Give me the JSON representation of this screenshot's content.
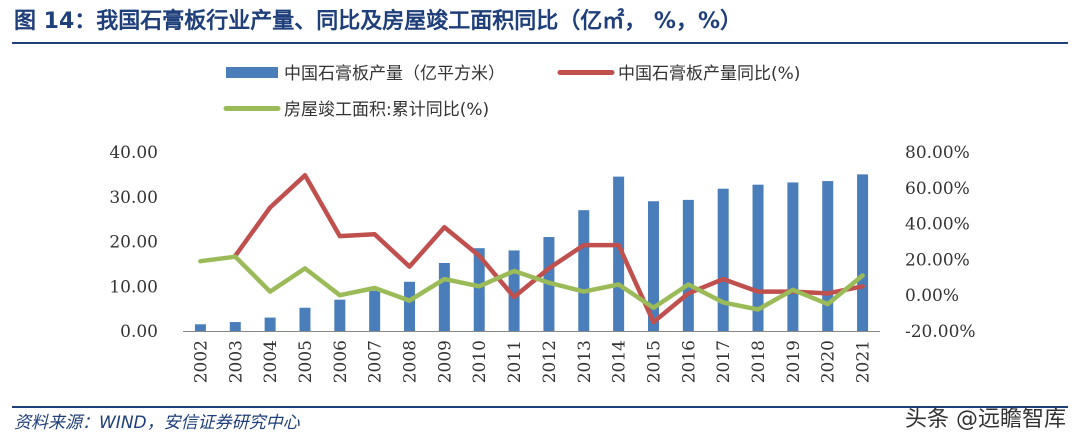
{
  "header": {
    "title": "图 14：我国石膏板行业产量、同比及房屋竣工面积同比（亿㎡， %，%）"
  },
  "footer": {
    "source": "资料来源：WIND，安信证券研究中心",
    "watermark": "头条 @远瞻智库"
  },
  "colors": {
    "bar": "#4a7ebb",
    "line1": "#c0504d",
    "line2": "#9bbb59",
    "accent": "#1f3f7a"
  },
  "chart_data": {
    "type": "bar",
    "categories": [
      "2002",
      "2003",
      "2004",
      "2005",
      "2006",
      "2007",
      "2008",
      "2009",
      "2010",
      "2011",
      "2012",
      "2013",
      "2014",
      "2015",
      "2016",
      "2017",
      "2018",
      "2019",
      "2020",
      "2021"
    ],
    "series": [
      {
        "name": "中国石膏板产量（亿平方米）",
        "type": "bar",
        "axis": "left",
        "values": [
          1.5,
          2.0,
          3.0,
          5.2,
          7.0,
          9.0,
          11.0,
          15.2,
          18.5,
          18.0,
          21.0,
          27.0,
          34.5,
          29.0,
          29.3,
          31.8,
          32.7,
          33.2,
          33.5,
          35.0
        ]
      },
      {
        "name": "中国石膏板产量同比(%)",
        "type": "line",
        "axis": "right",
        "values": [
          null,
          22.0,
          49.0,
          67.0,
          33.0,
          34.0,
          16.0,
          38.0,
          22.0,
          -1.0,
          15.0,
          28.0,
          28.0,
          -15.0,
          1.0,
          9.0,
          2.0,
          2.0,
          1.0,
          5.0
        ]
      },
      {
        "name": "房屋竣工面积:累计同比(%)",
        "type": "line",
        "axis": "right",
        "values": [
          19.0,
          21.5,
          2.0,
          15.0,
          0.0,
          4.0,
          -3.0,
          9.0,
          5.0,
          13.5,
          7.0,
          2.0,
          6.0,
          -7.0,
          6.0,
          -4.0,
          -8.0,
          3.0,
          -5.0,
          11.0
        ]
      }
    ],
    "y_left": {
      "ylim": [
        0,
        40
      ],
      "ticks": [
        "0.00",
        "10.00",
        "20.00",
        "30.00",
        "40.00"
      ]
    },
    "y_right": {
      "ylim": [
        -20,
        80
      ],
      "ticks": [
        "-20.00%",
        "0.00%",
        "20.00%",
        "40.00%",
        "60.00%",
        "80.00%"
      ]
    },
    "legend_position": "top",
    "grid": false
  }
}
